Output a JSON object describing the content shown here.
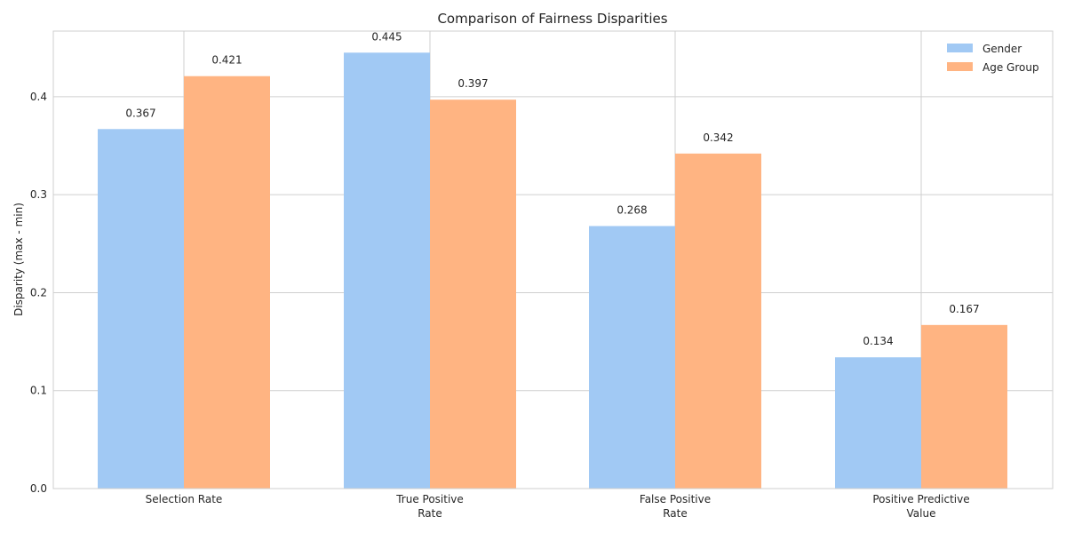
{
  "chart_data": {
    "type": "bar",
    "title": "Comparison of Fairness Disparities",
    "xlabel": "",
    "ylabel": "Disparity (max - min)",
    "categories": [
      [
        "Selection Rate"
      ],
      [
        "True Positive",
        "Rate"
      ],
      [
        "False Positive",
        "Rate"
      ],
      [
        "Positive Predictive",
        "Value"
      ]
    ],
    "series": [
      {
        "name": "Gender",
        "color": "#a1c9f4",
        "values": [
          0.367,
          0.445,
          0.268,
          0.134
        ]
      },
      {
        "name": "Age Group",
        "color": "#ffb482",
        "values": [
          0.421,
          0.397,
          0.342,
          0.167
        ]
      }
    ],
    "value_labels": [
      [
        "0.367",
        "0.445",
        "0.268",
        "0.134"
      ],
      [
        "0.421",
        "0.397",
        "0.342",
        "0.167"
      ]
    ],
    "yticks": [
      0.0,
      0.1,
      0.2,
      0.3,
      0.4
    ],
    "ytick_labels": [
      "0.0",
      "0.1",
      "0.2",
      "0.3",
      "0.4"
    ],
    "ylim": [
      0,
      0.467
    ],
    "grid": true,
    "legend_position": "top-right"
  }
}
